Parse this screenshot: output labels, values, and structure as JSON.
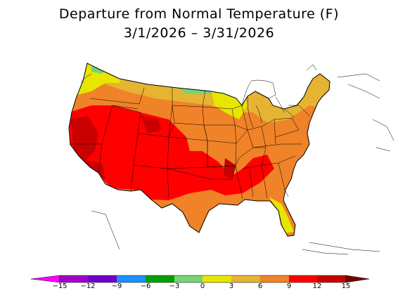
{
  "title": {
    "line1": "Departure from Normal Temperature (F)",
    "line2": "3/1/2026 – 3/31/2026"
  },
  "map": {
    "region": "contiguous United States",
    "layers": [
      "state-boundaries",
      "temperature-departure-shading"
    ]
  },
  "legend": {
    "ticks": [
      "−15",
      "−12",
      "−9",
      "−6",
      "−3",
      "0",
      "3",
      "6",
      "9",
      "12",
      "15"
    ],
    "colors": [
      "#ff00ff",
      "#a000c8",
      "#6e00c8",
      "#1e90ff",
      "#00a000",
      "#78d278",
      "#e6e600",
      "#e6b432",
      "#f08228",
      "#ff0000",
      "#c80000",
      "#780000"
    ]
  }
}
